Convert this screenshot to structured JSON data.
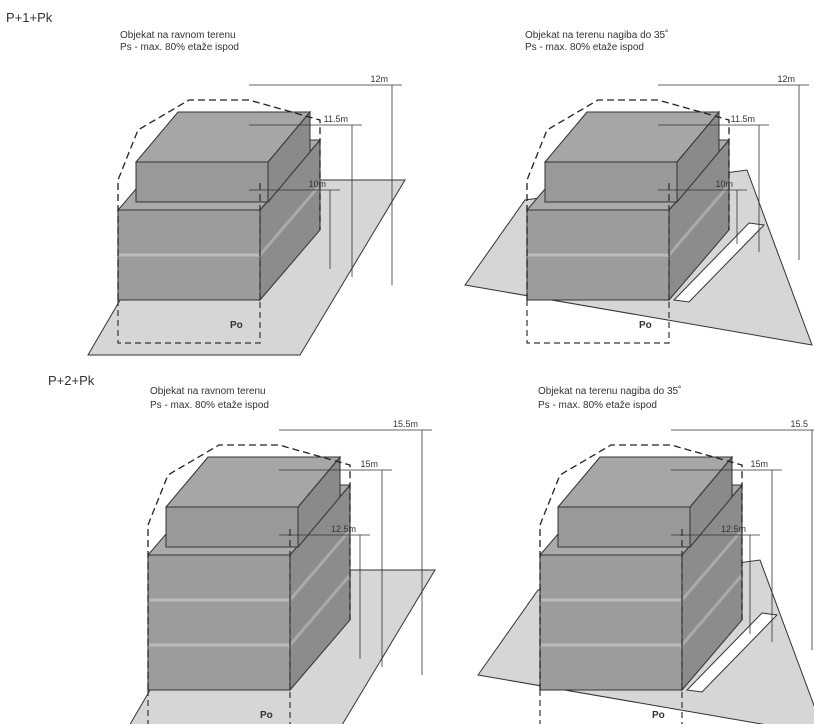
{
  "sections": [
    {
      "title": "P+1+Pk",
      "panels": [
        {
          "caption": "Objekat na ravnom terenu",
          "note": "Ps - max. 80% etaže ispod",
          "dimensions": [
            "12m",
            "11.5m",
            "10m"
          ],
          "base_label": "Po"
        },
        {
          "caption": "Objekat na terenu nagiba do 35˚",
          "note": "Ps - max. 80% etaže ispod",
          "dimensions": [
            "12m",
            "11.5m",
            "10m"
          ],
          "base_label": "Po"
        }
      ]
    },
    {
      "title": "P+2+Pk",
      "panels": [
        {
          "caption": "Objekat na ravnom terenu",
          "note": "Ps - max. 80% etaže ispod",
          "dimensions": [
            "15.5m",
            "15m",
            "12.5m"
          ],
          "base_label": "Po"
        },
        {
          "caption": "Objekat na terenu nagiba do 35˚",
          "note": "Ps - max. 80% etaže ispod",
          "dimensions": [
            "15.5",
            "15m",
            "12.5m"
          ],
          "base_label": "Po"
        }
      ]
    }
  ]
}
